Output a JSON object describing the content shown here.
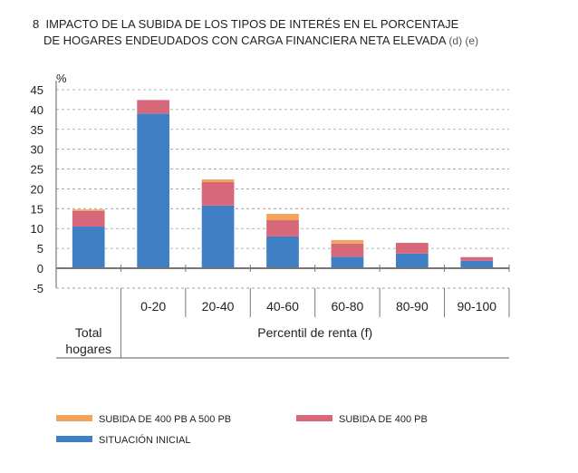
{
  "chart_data": {
    "type": "bar",
    "stacked": true,
    "title_number": "8",
    "title_line1": "IMPACTO DE LA SUBIDA DE LOS TIPOS DE INTERÉS EN EL PORCENTAJE",
    "title_line2": "DE HOGARES ENDEUDADOS CON CARGA FINANCIERA NETA ELEVADA",
    "title_notes": "(d) (e)",
    "ylabel": "%",
    "ylim": [
      -5,
      45
    ],
    "yticks": [
      -5,
      0,
      5,
      10,
      15,
      20,
      25,
      30,
      35,
      40,
      45
    ],
    "grid": true,
    "categories": [
      "Total hogares",
      "0-20",
      "20-40",
      "40-60",
      "60-80",
      "80-90",
      "90-100"
    ],
    "group_labels": {
      "total": "Total hogares",
      "total_line1": "Total",
      "total_line2": "hogares",
      "percentiles": "Percentil de renta (f)"
    },
    "series": [
      {
        "name": "SITUACIÓN INICIAL",
        "color": "#3f7fc3",
        "values": [
          10.5,
          39.0,
          15.8,
          8.0,
          2.9,
          3.7,
          1.9
        ]
      },
      {
        "name": "SUBIDA DE 400 PB",
        "color": "#d9677a",
        "values": [
          3.9,
          3.4,
          5.9,
          4.1,
          3.3,
          2.7,
          0.9
        ]
      },
      {
        "name": "SUBIDA DE 400 PB A 500 PB",
        "color": "#f2a35e",
        "values": [
          0.4,
          0.0,
          0.7,
          1.6,
          0.9,
          0.0,
          0.0
        ]
      }
    ],
    "legend_placement": "bottom"
  }
}
